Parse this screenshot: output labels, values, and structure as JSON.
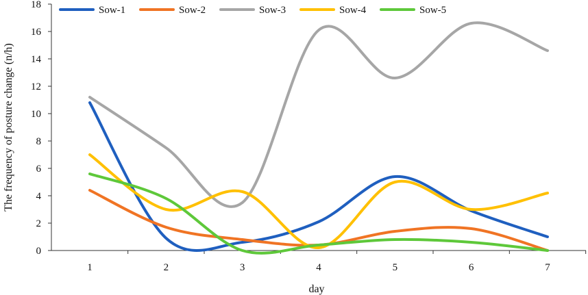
{
  "chart_data": {
    "type": "line",
    "title": "",
    "xlabel": "day",
    "ylabel": "The  frequency of posture change (n/h)",
    "x": [
      1,
      2,
      3,
      4,
      5,
      6,
      7
    ],
    "x_tick_labels": [
      "1",
      "2",
      "3",
      "4",
      "5",
      "6",
      "7"
    ],
    "y_ticks": [
      0,
      2,
      4,
      6,
      8,
      10,
      12,
      14,
      16,
      18
    ],
    "ylim": [
      0,
      18
    ],
    "grid": false,
    "legend_position": "top-left",
    "smooth": true,
    "series": [
      {
        "name": "Sow-1",
        "color": "#1f5fbf",
        "values": [
          10.8,
          0.9,
          0.6,
          2.1,
          5.4,
          2.9,
          1.0
        ]
      },
      {
        "name": "Sow-2",
        "color": "#f07424",
        "values": [
          4.4,
          1.7,
          0.8,
          0.4,
          1.4,
          1.6,
          0.0
        ]
      },
      {
        "name": "Sow-3",
        "color": "#a6a6a6",
        "values": [
          11.2,
          7.5,
          3.5,
          16.1,
          12.6,
          16.6,
          14.6
        ]
      },
      {
        "name": "Sow-4",
        "color": "#ffc000",
        "values": [
          7.0,
          3.0,
          4.3,
          0.2,
          5.0,
          3.0,
          4.2
        ]
      },
      {
        "name": "Sow-5",
        "color": "#5ec83a",
        "values": [
          5.6,
          3.8,
          0.0,
          0.4,
          0.8,
          0.6,
          0.0
        ]
      }
    ]
  }
}
